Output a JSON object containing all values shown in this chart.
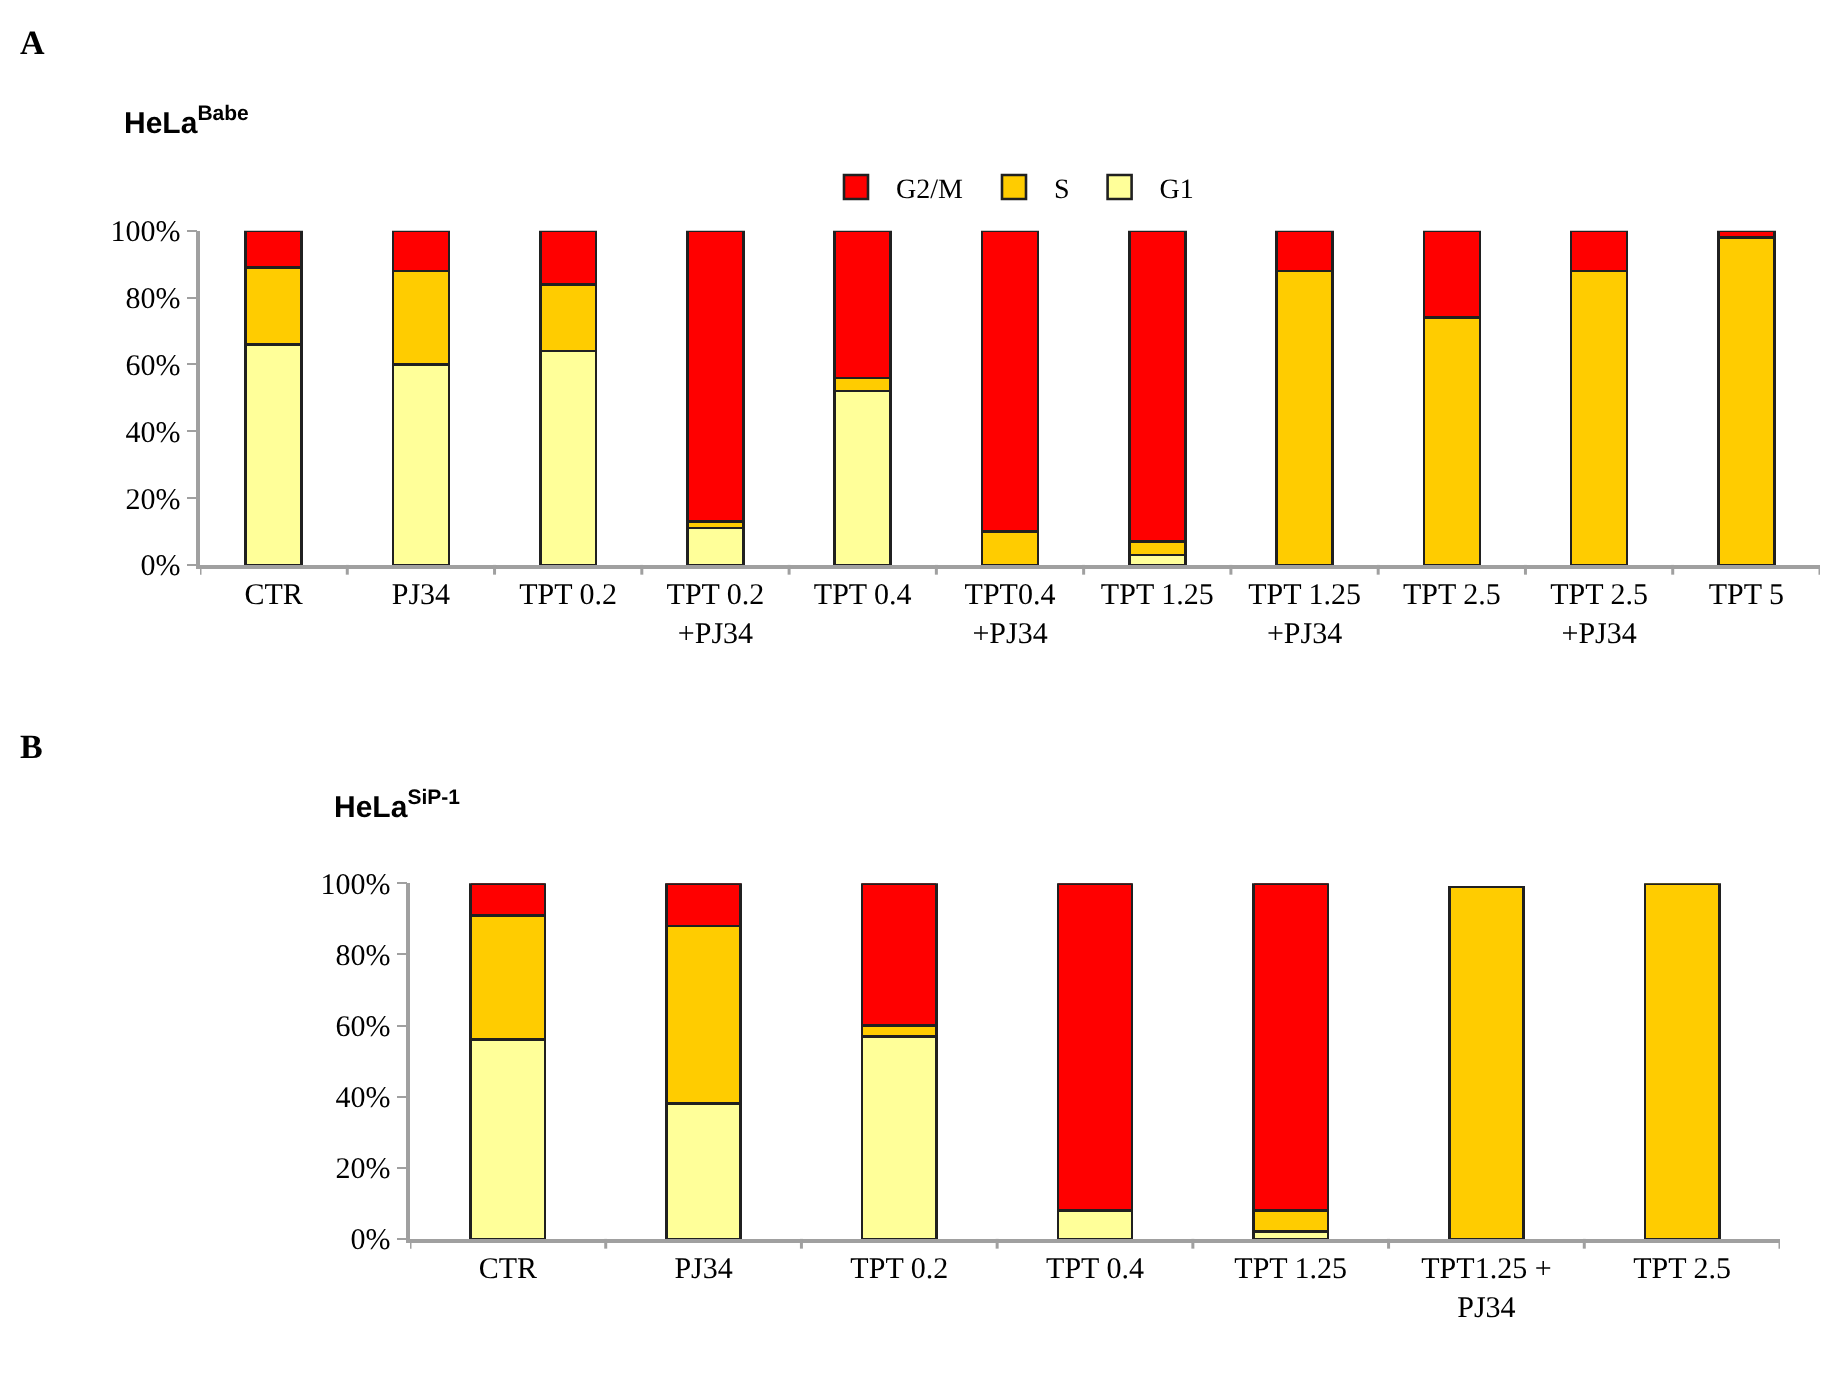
{
  "chart_data": [
    {
      "type": "bar",
      "stacked": true,
      "title": "HeLa$^{Babe}$",
      "annotations": [
        "A"
      ],
      "categories": [
        "CTR",
        "PJ34",
        "TPT 0.2",
        "TPT 0.2\n+PJ34",
        "TPT 0.4",
        "TPT0.4\n+PJ34",
        "TPT 1.25",
        "TPT 1.25\n+PJ34",
        "TPT 2.5",
        "TPT 2.5\n+PJ34",
        "TPT 5"
      ],
      "series": [
        {
          "name": "G1",
          "color": "#ffff99",
          "values": [
            66,
            60,
            64,
            11,
            52,
            0,
            3,
            0,
            0,
            0,
            0
          ]
        },
        {
          "name": "S",
          "color": "#ffcc00",
          "values": [
            23,
            28,
            20,
            2,
            4,
            10,
            4,
            88,
            74,
            88,
            98
          ]
        },
        {
          "name": "G2/M",
          "color": "#ff0000",
          "values": [
            11,
            12,
            16,
            87,
            44,
            90,
            93,
            12,
            26,
            12,
            2
          ]
        }
      ],
      "ylim": [
        0,
        100
      ],
      "yticks": [
        {
          "value": 0,
          "label": "0%"
        },
        {
          "value": 20,
          "label": "20%"
        },
        {
          "value": 40,
          "label": "40%"
        },
        {
          "value": 60,
          "label": "60%"
        },
        {
          "value": 80,
          "label": "80%"
        },
        {
          "value": 100,
          "label": "100%"
        }
      ],
      "legend": "top"
    },
    {
      "type": "bar",
      "stacked": true,
      "title": "HeLa$^{SiP-1}$",
      "annotations": [
        "B"
      ],
      "categories": [
        "CTR",
        "PJ34",
        "TPT 0.2",
        "TPT 0.4",
        "TPT 1.25",
        "TPT1.25 +\nPJ34",
        "TPT 2.5"
      ],
      "series": [
        {
          "color": "#ffff99",
          "values": [
            56,
            38,
            57,
            8,
            2,
            null,
            0
          ]
        },
        {
          "color": "#ffcc00",
          "values": [
            35,
            50,
            3,
            0,
            6,
            99,
            100
          ]
        },
        {
          "color": "#ff0000",
          "values": [
            9,
            12,
            40,
            92,
            92,
            0,
            0
          ]
        }
      ],
      "ylim": [
        0,
        100
      ],
      "yticks": [
        {
          "value": 0,
          "label": "0%"
        },
        {
          "value": 20,
          "label": "20%"
        },
        {
          "value": 40,
          "label": "40%"
        },
        {
          "value": 60,
          "label": "60%"
        },
        {
          "value": 80,
          "label": "80%"
        },
        {
          "value": 100,
          "label": "100%"
        }
      ]
    }
  ]
}
